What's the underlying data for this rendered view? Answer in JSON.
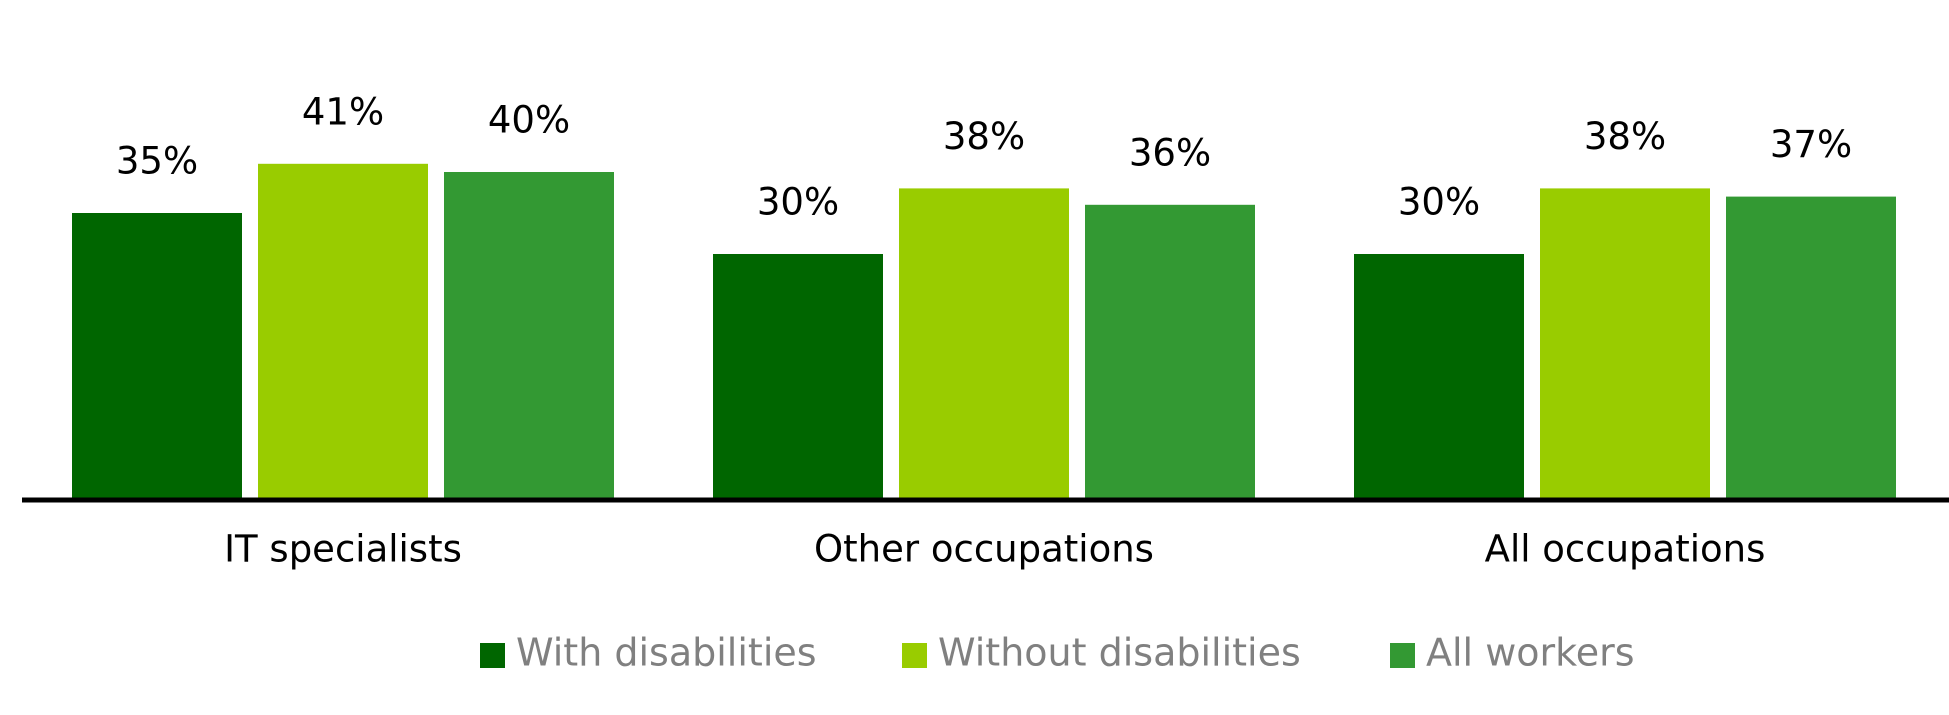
{
  "chart_data": {
    "type": "bar",
    "categories": [
      "IT specialists",
      "Other occupations",
      "All occupations"
    ],
    "series": [
      {
        "name": "With disabilities",
        "color": "#006600",
        "values": [
          35,
          30,
          30
        ],
        "value_labels": [
          "35%",
          "30%",
          "30%"
        ]
      },
      {
        "name": "Without disabilities",
        "color": "#99cc00",
        "values": [
          41,
          38,
          38
        ],
        "value_labels": [
          "41%",
          "38%",
          "38%"
        ]
      },
      {
        "name": "All workers",
        "color": "#339933",
        "values": [
          40,
          36,
          37
        ],
        "value_labels": [
          "40%",
          "36%",
          "37%"
        ]
      }
    ],
    "legend": "bottom"
  }
}
